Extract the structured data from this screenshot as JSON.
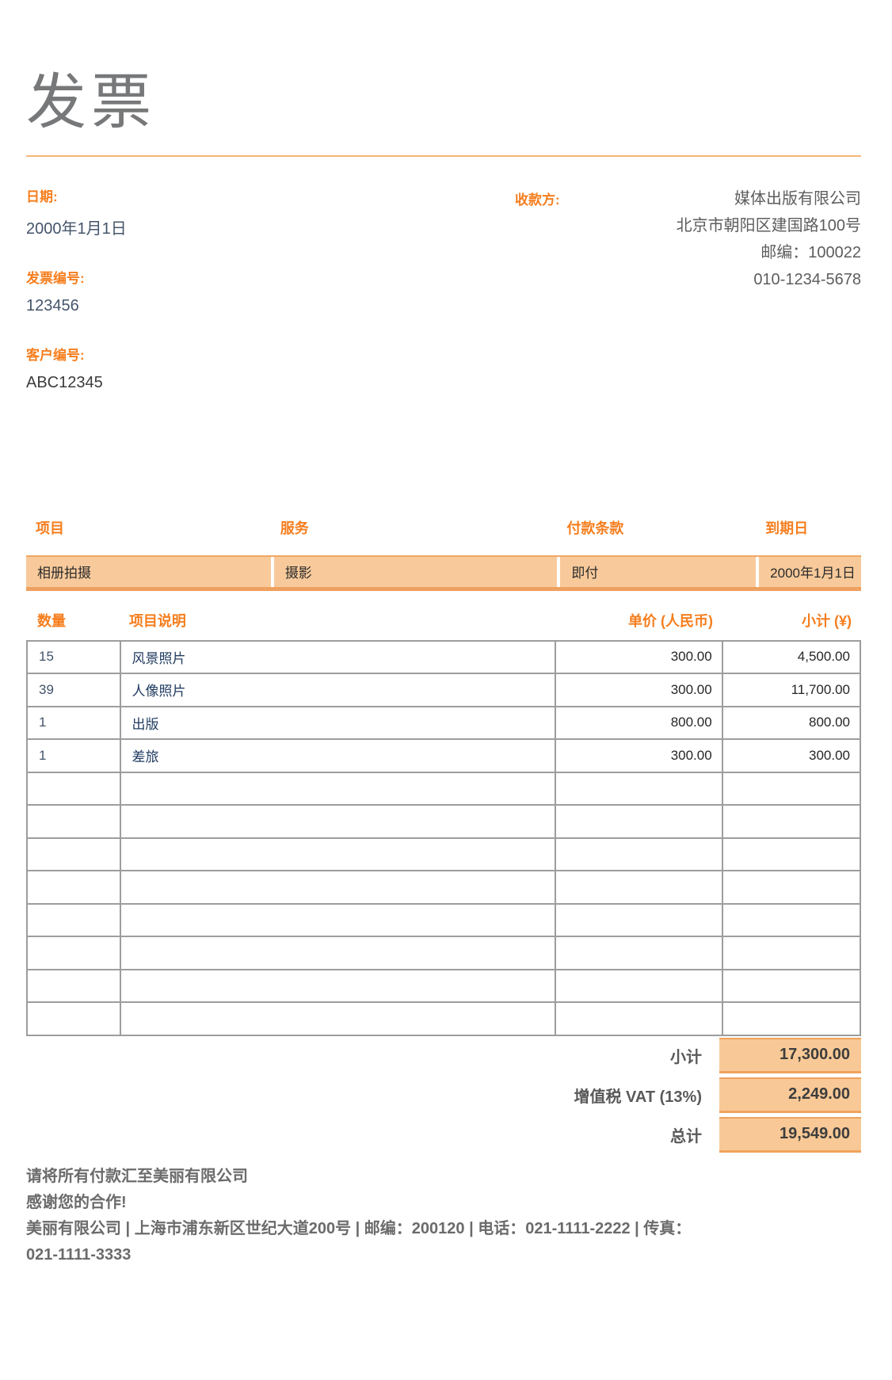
{
  "page": {
    "title": "发票"
  },
  "meta": {
    "date_label": "日期:",
    "date_value": "2000年1月1日",
    "invoice_no_label": "发票编号:",
    "invoice_no_value": "123456",
    "customer_no_label": "客户编号:",
    "customer_no_value": "ABC12345"
  },
  "payee": {
    "label": "收款方:",
    "lines": [
      "媒体出版有限公司",
      "北京市朝阳区建国路100号",
      "邮编：100022",
      "010-1234-5678"
    ]
  },
  "service_table": {
    "headers": [
      "项目",
      "服务",
      "付款条款",
      "到期日"
    ],
    "row": [
      "相册拍摄",
      "摄影",
      "即付",
      "2000年1月1日"
    ]
  },
  "items_table": {
    "headers": [
      "数量",
      "项目说明",
      "单价 (人民币)",
      "小计 (¥)"
    ],
    "rows": [
      {
        "qty": "15",
        "desc": "风景照片",
        "unit": "300.00",
        "amount": "4,500.00"
      },
      {
        "qty": "39",
        "desc": "人像照片",
        "unit": "300.00",
        "amount": "11,700.00"
      },
      {
        "qty": "1",
        "desc": "出版",
        "unit": "800.00",
        "amount": "800.00"
      },
      {
        "qty": "1",
        "desc": "差旅",
        "unit": "300.00",
        "amount": "300.00"
      }
    ],
    "empty_row_count": 8
  },
  "totals": [
    {
      "label": "小计",
      "value": "17,300.00"
    },
    {
      "label": "增值税 VAT (13%)",
      "value": "2,249.00"
    },
    {
      "label": "总计",
      "value": "19,549.00"
    }
  ],
  "footer": {
    "lines": [
      "请将所有付款汇至美丽有限公司",
      "感谢您的合作!",
      "美丽有限公司 | 上海市浦东新区世纪大道200号 | 邮编：200120 | 电话：021-1111-2222 | 传真：",
      "021-1111-3333"
    ]
  },
  "colors": {
    "accent_orange": "#f67e1e",
    "service_row_bg": "#f8ca9b",
    "service_row_border": "#efa15f",
    "totals_box_bg": "#f8c996",
    "totals_box_border": "#f0a25d",
    "navy_text": "#44546a",
    "desc_text": "#1f3a5f",
    "gray_text": "#5d5d5d",
    "title_gray": "#77787a",
    "table_border_gray": "#9d9d9d"
  }
}
